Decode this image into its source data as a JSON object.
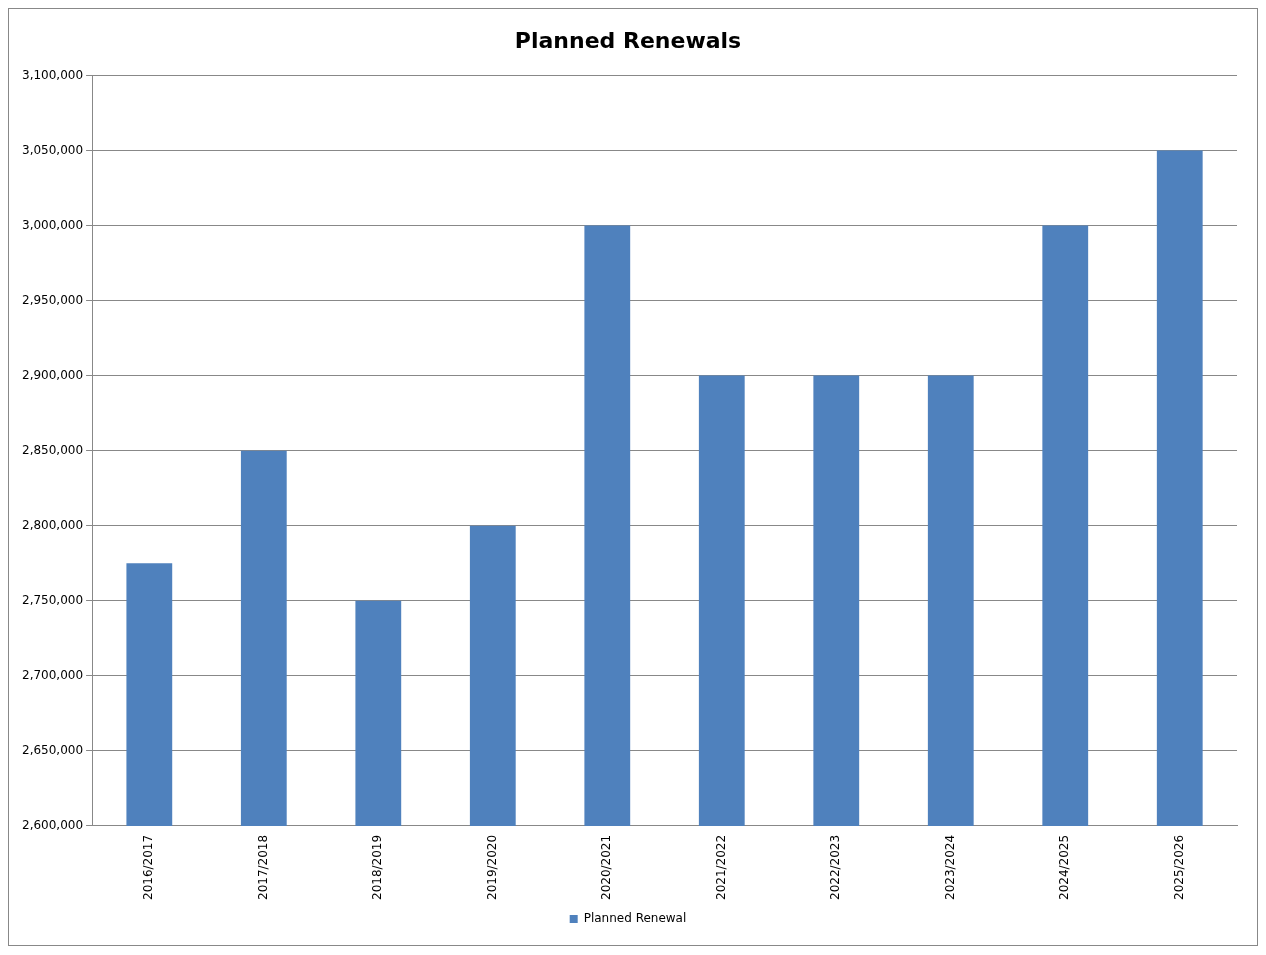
{
  "chart_data": {
    "type": "bar",
    "title": "Planned Renewals",
    "categories": [
      "2016/2017",
      "2017/2018",
      "2018/2019",
      "2019/2020",
      "2020/2021",
      "2021/2022",
      "2022/2023",
      "2023/2024",
      "2024/2025",
      "2025/2026"
    ],
    "series": [
      {
        "name": "Planned Renewal",
        "color": "#4f81bd",
        "values": [
          2775000,
          2850000,
          2750000,
          2800000,
          3000000,
          2900000,
          2900000,
          2900000,
          3000000,
          3050000
        ]
      }
    ],
    "ylim": [
      2600000,
      3100000
    ],
    "yticks": [
      {
        "value": 2600000,
        "label": "2,600,000"
      },
      {
        "value": 2650000,
        "label": "2,650,000"
      },
      {
        "value": 2700000,
        "label": "2,700,000"
      },
      {
        "value": 2750000,
        "label": "2,750,000"
      },
      {
        "value": 2800000,
        "label": "2,800,000"
      },
      {
        "value": 2850000,
        "label": "2,850,000"
      },
      {
        "value": 2900000,
        "label": "2,900,000"
      },
      {
        "value": 2950000,
        "label": "2,950,000"
      },
      {
        "value": 3000000,
        "label": "3,000,000"
      },
      {
        "value": 3050000,
        "label": "3,050,000"
      },
      {
        "value": 3100000,
        "label": "3,100,000"
      }
    ],
    "grid": "y",
    "legend": "bottom"
  }
}
